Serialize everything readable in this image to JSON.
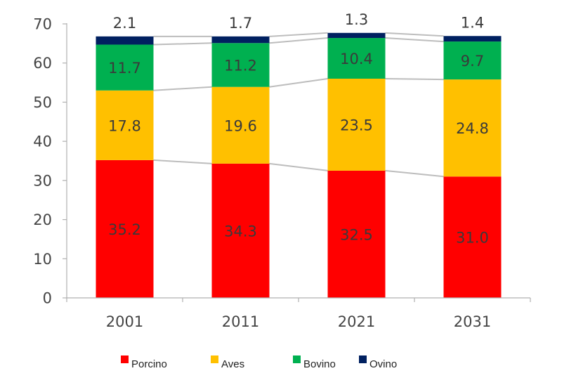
{
  "chart_data": {
    "type": "bar",
    "stacked": true,
    "categories": [
      "2001",
      "2011",
      "2021",
      "2031"
    ],
    "series": [
      {
        "name": "Porcino",
        "color": "#ff0000",
        "values": [
          35.2,
          34.3,
          32.5,
          31.0
        ],
        "labels": [
          "35.2",
          "34.3",
          "32.5",
          "31.0"
        ]
      },
      {
        "name": "Aves",
        "color": "#ffc000",
        "values": [
          17.8,
          19.6,
          23.5,
          24.8
        ],
        "labels": [
          "17.8",
          "19.6",
          "23.5",
          "24.8"
        ]
      },
      {
        "name": "Bovino",
        "color": "#00b050",
        "values": [
          11.7,
          11.2,
          10.4,
          9.7
        ],
        "labels": [
          "11.7",
          "11.2",
          "10.4",
          "9.7"
        ]
      },
      {
        "name": "Ovino",
        "color": "#002060",
        "values": [
          2.1,
          1.7,
          1.3,
          1.4
        ],
        "labels": [
          "2.1",
          "1.7",
          "1.3",
          "1.4"
        ]
      }
    ],
    "ylim": [
      0,
      70
    ],
    "yticks": [
      "0",
      "10",
      "20",
      "30",
      "40",
      "50",
      "60",
      "70"
    ],
    "series_lines": true,
    "grid": false,
    "legend": "bottom"
  }
}
